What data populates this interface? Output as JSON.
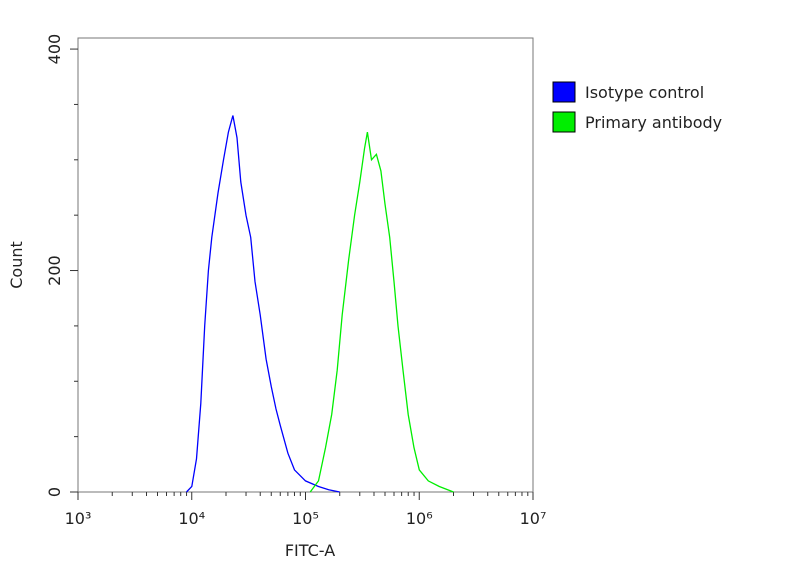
{
  "chart_data": {
    "type": "line",
    "xscale": "log",
    "xlabel": "FITC-A",
    "ylabel": "Count",
    "legend": "upper right",
    "xlim": [
      1000,
      10000000
    ],
    "xticks": [
      {
        "value": 1000,
        "label": "10³"
      },
      {
        "value": 10000,
        "label": "10⁴"
      },
      {
        "value": 100000,
        "label": "10⁵"
      },
      {
        "value": 1000000,
        "label": "10⁶"
      },
      {
        "value": 10000000,
        "label": "10⁷"
      }
    ],
    "xminorticks": [
      2000,
      3000,
      4000,
      5000,
      6000,
      7000,
      8000,
      9000,
      20000,
      30000,
      40000,
      50000,
      60000,
      70000,
      80000,
      90000,
      200000,
      300000,
      400000,
      500000,
      600000,
      700000,
      800000,
      900000,
      2000000,
      3000000,
      4000000,
      5000000,
      6000000,
      7000000,
      8000000,
      9000000
    ],
    "ylim": [
      0,
      410
    ],
    "yticks": [
      0,
      200,
      400
    ],
    "yminorticks": [
      50,
      100,
      150,
      250,
      300,
      350
    ],
    "series": [
      {
        "name": "Isotype control",
        "color": "#0000ff",
        "x": [
          9000,
          10000,
          11000,
          12000,
          13000,
          14000,
          15000,
          17000,
          19000,
          21000,
          23000,
          25000,
          27000,
          30000,
          33000,
          36000,
          40000,
          45000,
          50000,
          55000,
          60000,
          70000,
          80000,
          100000,
          130000,
          160000,
          200000
        ],
        "values": [
          0,
          5,
          30,
          80,
          150,
          200,
          230,
          270,
          300,
          325,
          340,
          320,
          280,
          250,
          230,
          190,
          160,
          120,
          95,
          75,
          60,
          35,
          20,
          10,
          5,
          2,
          0
        ]
      },
      {
        "name": "Primary antibody",
        "color": "#00ee00",
        "x": [
          110000,
          130000,
          150000,
          170000,
          190000,
          210000,
          240000,
          270000,
          300000,
          330000,
          350000,
          380000,
          420000,
          460000,
          500000,
          550000,
          600000,
          650000,
          720000,
          800000,
          900000,
          1000000,
          1200000,
          1500000,
          2000000
        ],
        "values": [
          0,
          10,
          40,
          70,
          110,
          160,
          210,
          250,
          280,
          310,
          325,
          300,
          305,
          290,
          260,
          230,
          190,
          150,
          110,
          70,
          40,
          20,
          10,
          5,
          0
        ]
      }
    ]
  }
}
